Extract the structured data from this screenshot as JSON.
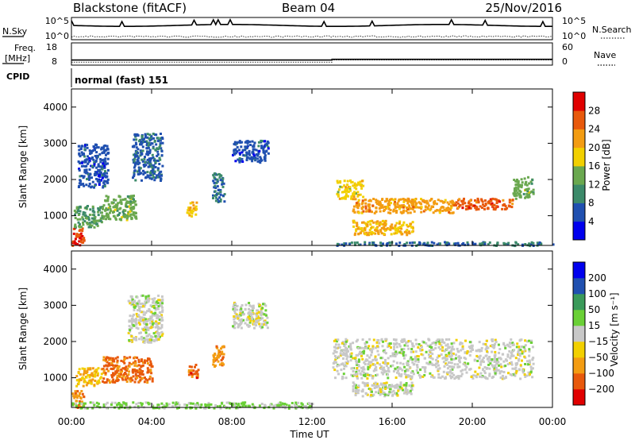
{
  "header": {
    "station": "Blackstone (fitACF)",
    "beam": "Beam 04",
    "date": "25/Nov/2016"
  },
  "noise_panel": {
    "left_label": "N.Sky",
    "right_label": "N.Search",
    "left_ticks": [
      "10^5",
      "10^0"
    ],
    "right_ticks": [
      "10^5",
      "10^0"
    ]
  },
  "freq_panel": {
    "left_label_1": "Freq.",
    "left_label_2": "[MHz]",
    "left_ticks": [
      "18",
      "8"
    ],
    "right_label": "Nave",
    "right_ticks": [
      "60",
      "0"
    ],
    "freq_mhz": [
      [
        0,
        10.3
      ],
      [
        13.0,
        10.3
      ],
      [
        13.0,
        10.6
      ],
      [
        24,
        10.6
      ]
    ],
    "nave": [
      [
        0,
        8
      ],
      [
        13.0,
        8
      ],
      [
        13.0,
        14
      ],
      [
        24,
        14
      ]
    ]
  },
  "cpid": {
    "label": "CPID",
    "value": "normal (fast) 151"
  },
  "colors": {
    "power": [
      "#0000ee",
      "#2050b0",
      "#3c8a6a",
      "#6aa84f",
      "#f2d000",
      "#f39c12",
      "#e8590c",
      "#e00000"
    ],
    "velocity": [
      "#e00000",
      "#e8590c",
      "#f39c12",
      "#f2d000",
      "#c8c8c8",
      "#6ad036",
      "#3a9a5a",
      "#2050b0",
      "#0000ee"
    ]
  },
  "chart_data": [
    {
      "type": "heatmap",
      "ylabel": "Slant Range [km]",
      "ylim": [
        180,
        4500
      ],
      "xlim": [
        0,
        24
      ],
      "yticks": [
        "1000",
        "2000",
        "3000",
        "4000"
      ],
      "colorbar": {
        "label": "Power [dB]",
        "ticks": [
          "4",
          "8",
          "12",
          "16",
          "20",
          "24",
          "28"
        ],
        "range": [
          0,
          32
        ]
      },
      "regions": [
        {
          "x": [
            0.0,
            0.6
          ],
          "y": [
            200,
            700
          ],
          "value": 28
        },
        {
          "x": [
            0.1,
            1.5
          ],
          "y": [
            700,
            1300
          ],
          "value": 12
        },
        {
          "x": [
            0.3,
            1.8
          ],
          "y": [
            1800,
            3000
          ],
          "value": 6
        },
        {
          "x": [
            1.5,
            3.2
          ],
          "y": [
            900,
            1600
          ],
          "value": 14
        },
        {
          "x": [
            3.0,
            4.5
          ],
          "y": [
            2000,
            3300
          ],
          "value": 7
        },
        {
          "x": [
            5.7,
            6.2
          ],
          "y": [
            1000,
            1400
          ],
          "value": 20
        },
        {
          "x": [
            7.0,
            7.6
          ],
          "y": [
            1400,
            2200
          ],
          "value": 8
        },
        {
          "x": [
            8.0,
            9.8
          ],
          "y": [
            2500,
            3100
          ],
          "value": 6
        },
        {
          "x": [
            13.0,
            24.0
          ],
          "y": [
            200,
            300
          ],
          "value": 8
        },
        {
          "x": [
            13.2,
            14.5
          ],
          "y": [
            1500,
            2000
          ],
          "value": 18
        },
        {
          "x": [
            14.0,
            19.0
          ],
          "y": [
            1100,
            1500
          ],
          "value": 22
        },
        {
          "x": [
            14.0,
            17.0
          ],
          "y": [
            500,
            900
          ],
          "value": 20
        },
        {
          "x": [
            19.0,
            22.0
          ],
          "y": [
            1200,
            1500
          ],
          "value": 26
        },
        {
          "x": [
            22.0,
            23.0
          ],
          "y": [
            1500,
            2100
          ],
          "value": 14
        }
      ]
    },
    {
      "type": "heatmap",
      "ylabel": "Slant Range [km]",
      "xlabel": "Time UT",
      "ylim": [
        180,
        4500
      ],
      "xlim": [
        0,
        24
      ],
      "xticks": [
        "00:00",
        "04:00",
        "08:00",
        "12:00",
        "16:00",
        "20:00",
        "00:00"
      ],
      "yticks": [
        "1000",
        "2000",
        "3000",
        "4000"
      ],
      "colorbar": {
        "label": "Velocity [m s⁻¹]",
        "ticks": [
          "200",
          "100",
          "50",
          "15",
          "−15",
          "−50",
          "−100",
          "−200"
        ],
        "range": [
          -250,
          250
        ]
      },
      "regions": [
        {
          "x": [
            0.0,
            0.6
          ],
          "y": [
            200,
            700
          ],
          "value": -120
        },
        {
          "x": [
            0.2,
            1.5
          ],
          "y": [
            800,
            1300
          ],
          "value": -80
        },
        {
          "x": [
            1.5,
            4.0
          ],
          "y": [
            900,
            1600
          ],
          "value": -150
        },
        {
          "x": [
            5.8,
            6.3
          ],
          "y": [
            1000,
            1400
          ],
          "value": -160
        },
        {
          "x": [
            7.0,
            7.6
          ],
          "y": [
            1300,
            1900
          ],
          "value": -130
        },
        {
          "x": [
            2.8,
            4.5
          ],
          "y": [
            2000,
            3300
          ],
          "value": 0
        },
        {
          "x": [
            8.0,
            9.8
          ],
          "y": [
            2400,
            3100
          ],
          "value": 0
        },
        {
          "x": [
            0.0,
            12.0
          ],
          "y": [
            180,
            350
          ],
          "value": 40
        },
        {
          "x": [
            13.0,
            23.0
          ],
          "y": [
            1000,
            2100
          ],
          "value": 0
        },
        {
          "x": [
            14.0,
            17.0
          ],
          "y": [
            500,
            900
          ],
          "value": 0
        }
      ]
    }
  ]
}
